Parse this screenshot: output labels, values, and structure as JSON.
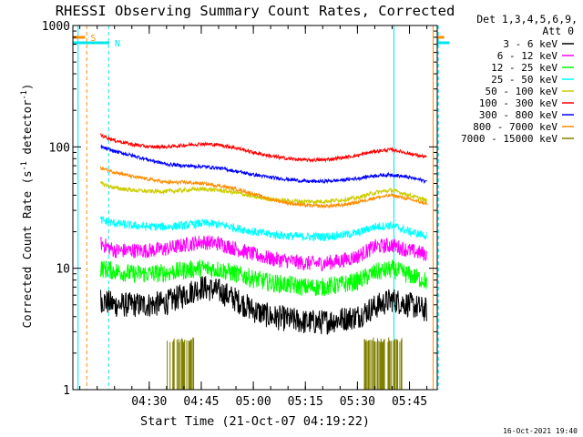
{
  "chart_data": {
    "type": "line",
    "title": "RHESSI Observing Summary Count Rates, Corrected",
    "xlabel": "Start Time (21-Oct-07 04:19:22)",
    "ylabel": "Corrected Count Rate (s",
    "ylabel_sup1": "-1",
    "ylabel_mid": " detector",
    "ylabel_sup2": "-1",
    "ylabel_end": ")",
    "y_scale": "log",
    "ylim": [
      1,
      1000
    ],
    "xlim_minutes": [
      -22,
      83
    ],
    "x_tick_labels": [
      "04:30",
      "04:45",
      "05:00",
      "05:15",
      "05:30",
      "05:45"
    ],
    "x_tick_minutes": [
      0,
      15,
      30,
      45,
      60,
      75
    ],
    "y_tick_labels": [
      "1",
      "10",
      "100",
      "1000"
    ],
    "y_tick_values": [
      1,
      10,
      100,
      1000
    ],
    "legend_header": [
      "Det 1,3,4,5,6,9,",
      "Att 0"
    ],
    "timestamp": "16-Oct-2021 19:40",
    "markers": [
      {
        "label": "S",
        "color": "#ff8c00",
        "edges_minutes": [
          -18.5,
          85.0
        ]
      },
      {
        "label": "N",
        "color": "#00e5ee",
        "edges_minutes": [
          -11.5,
          86.5
        ]
      }
    ],
    "vertical_lines": [
      {
        "minute": -18.0,
        "color": "#ff8c00",
        "style": "dashed"
      },
      {
        "minute": -11.7,
        "color": "#00e5ee",
        "style": "dashed"
      },
      {
        "minute": -20.5,
        "color": "#00e5ee",
        "style": "solid"
      },
      {
        "minute": 70.5,
        "color": "#00e5ee",
        "style": "solid"
      },
      {
        "minute": 81.8,
        "color": "#ff8c00",
        "style": "solid"
      },
      {
        "minute": 83.3,
        "color": "#00e5ee",
        "style": "dashed"
      }
    ],
    "time_minutes": [
      -14,
      -10,
      -5,
      0,
      5,
      10,
      15,
      20,
      25,
      30,
      35,
      40,
      45,
      50,
      55,
      60,
      65,
      70,
      75,
      80
    ],
    "series": [
      {
        "name": "3 - 6 keV",
        "color": "#000000",
        "noise": 0.3,
        "values": [
          5.5,
          5.0,
          5.0,
          5.0,
          5.2,
          6.0,
          7.0,
          6.5,
          5.5,
          4.5,
          4.0,
          3.8,
          3.6,
          3.6,
          3.8,
          4.0,
          4.8,
          5.5,
          5.0,
          4.5
        ]
      },
      {
        "name": "6 - 12 keV",
        "color": "#ff00ff",
        "noise": 0.18,
        "values": [
          16,
          14,
          14,
          14,
          14.5,
          15.5,
          16.5,
          16,
          14.5,
          13,
          12,
          11.5,
          11,
          11,
          11.5,
          12.5,
          15,
          15.5,
          14,
          13
        ]
      },
      {
        "name": "12 - 25 keV",
        "color": "#00ff00",
        "noise": 0.22,
        "values": [
          10,
          9.5,
          9,
          9,
          9.2,
          9.6,
          10,
          9.8,
          9,
          8.2,
          7.6,
          7.3,
          7.0,
          7.0,
          7.3,
          7.8,
          9.2,
          9.8,
          8.8,
          7.8
        ]
      },
      {
        "name": "25 - 50 keV",
        "color": "#00ffff",
        "noise": 0.1,
        "values": [
          25,
          23.5,
          22.5,
          22,
          22,
          22.5,
          23.5,
          23,
          21.5,
          20,
          19,
          18.5,
          18.2,
          18.2,
          18.7,
          19.5,
          22,
          22.5,
          20,
          18.5
        ]
      },
      {
        "name": "50 - 100 keV",
        "color": "#cccc00",
        "noise": 0.05,
        "values": [
          50,
          46,
          44,
          43,
          43,
          44,
          45,
          44,
          42,
          39,
          37,
          36,
          35.5,
          35.5,
          36.5,
          38,
          42,
          44,
          40,
          36
        ]
      },
      {
        "name": "100 - 300 keV",
        "color": "#ff0000",
        "noise": 0.04,
        "values": [
          125,
          113,
          105,
          100,
          100,
          103,
          106,
          104,
          98,
          90,
          84,
          80,
          78,
          78,
          81,
          85,
          92,
          95,
          88,
          82
        ]
      },
      {
        "name": "300 - 800 keV",
        "color": "#0000ff",
        "noise": 0.04,
        "values": [
          100,
          92,
          85,
          78,
          72,
          70,
          69,
          67,
          63,
          59,
          56,
          54,
          52,
          52,
          53,
          55,
          58,
          59,
          56,
          52
        ]
      },
      {
        "name": "800 - 7000 keV",
        "color": "#ff8c00",
        "noise": 0.04,
        "values": [
          67,
          62,
          57,
          54,
          51,
          51,
          50,
          48,
          45,
          41,
          37,
          34.5,
          33,
          32.5,
          33,
          35,
          38,
          40,
          37,
          34
        ]
      },
      {
        "name": "7000 - 15000 keV",
        "color": "#808000",
        "noise": 0.0,
        "values": []
      }
    ],
    "activity_bands_minutes": [
      [
        5,
        13
      ],
      [
        62,
        73
      ]
    ],
    "activity_band_top": 2.7
  }
}
